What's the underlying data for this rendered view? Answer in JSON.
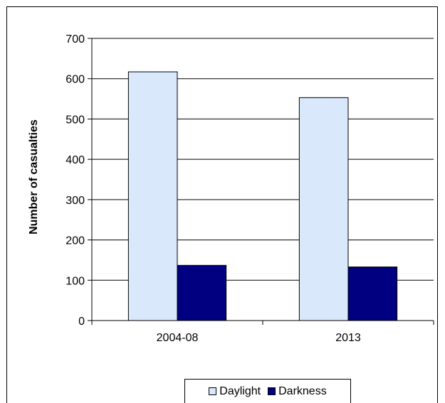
{
  "chart_data": {
    "type": "bar",
    "title": "",
    "xlabel": "",
    "ylabel": "Number of casualties",
    "ylim": [
      0,
      700
    ],
    "yticks": [
      0,
      100,
      200,
      300,
      400,
      500,
      600,
      700
    ],
    "grid": true,
    "legend_position": "bottom",
    "categories": [
      "2004-08",
      "2013"
    ],
    "series": [
      {
        "name": "Daylight",
        "values": [
          617,
          553
        ],
        "color": "#dae8fc"
      },
      {
        "name": "Darkness",
        "values": [
          137,
          133
        ],
        "color": "#000080"
      }
    ]
  }
}
